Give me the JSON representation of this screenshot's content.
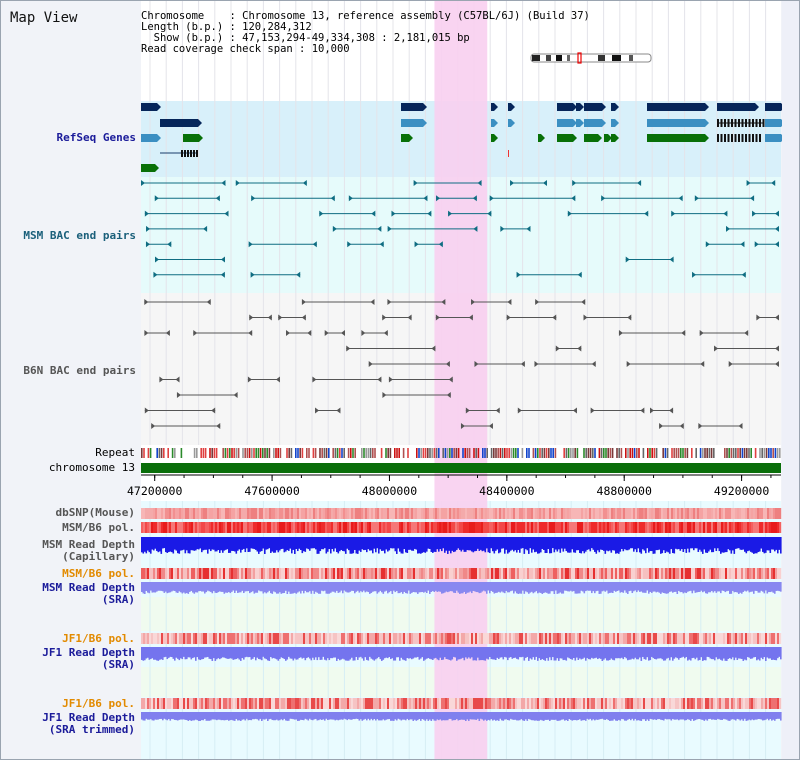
{
  "title": "Map View",
  "info": {
    "chromosome_key": "Chromosome",
    "chromosome_val": "Chromosome 13, reference assembly (C57BL/6J) (Build 37)",
    "length_key": "Length (b.p.)",
    "length_val": "120,284,312",
    "show_key": "Show (b.p.)",
    "show_val": "47,153,294-49,334,308 : 2,181,015 bp",
    "span_key": "Read coverage check span",
    "span_val": "10,000"
  },
  "tracks": {
    "refseq": "RefSeq Genes",
    "msm_bac": "MSM BAC end pairs",
    "b6n_bac": "B6N BAC end pairs",
    "repeat": "Repeat",
    "chromosome": "chromosome 13",
    "dbsnp": "dbSNP(Mouse)",
    "msm_b6_pol": "MSM/B6 pol.",
    "msm_depth_cap_1": "MSM Read Depth",
    "msm_depth_cap_2": "(Capillary)",
    "msm_b6_pol_2": "MSM/B6 pol.",
    "msm_depth_sra_1": "MSM Read Depth",
    "msm_depth_sra_2": "(SRA)",
    "jf1_b6_pol": "JF1/B6 pol.",
    "jf1_depth_sra_1": "JF1 Read Depth",
    "jf1_depth_sra_2": "(SRA)",
    "jf1_b6_pol_2": "JF1/B6 pol.",
    "jf1_depth_trim_1": "JF1 Read Depth",
    "jf1_depth_trim_2": "(SRA trimmed)"
  },
  "axis": {
    "ticks": [
      "47200000",
      "47600000",
      "48000000",
      "48400000",
      "48800000",
      "49200000"
    ],
    "tick_values": [
      47200000,
      47600000,
      48000000,
      48400000,
      48800000,
      49200000
    ],
    "range": [
      47153294,
      49334308
    ]
  },
  "highlight_range": [
    48153294,
    48333294
  ],
  "colors": {
    "refseq_dark": "#06265a",
    "refseq_mid": "#3b8fc2",
    "refseq_green": "#087008",
    "msm_bac": "#0f6d82",
    "b6n_bac": "#555555",
    "highlight": "#f8cff0",
    "chrom": "#0a6e0a",
    "label_navy": "#1b1b9a",
    "label_teal": "#1a5f7a",
    "label_orange": "#e28a00"
  }
}
